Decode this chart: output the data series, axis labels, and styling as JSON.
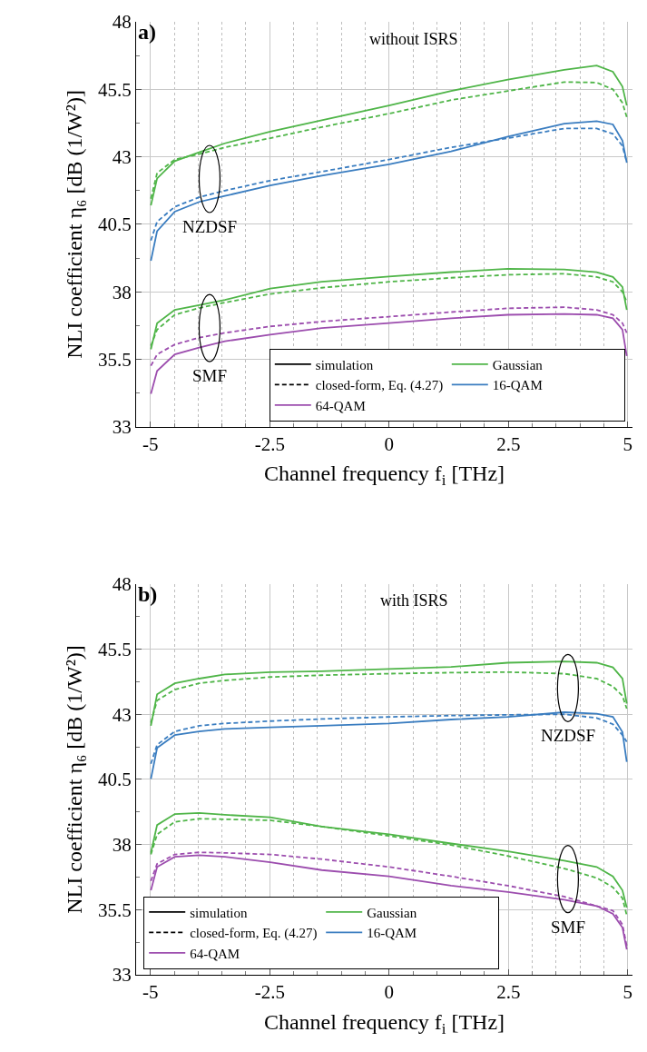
{
  "chart_data": [
    {
      "type": "line",
      "title": "without ISRS",
      "xlabel": "Channel frequency f$_{i}$ [THz]",
      "ylabel": "NLI coefficient η₆ [dB (1/W²)]",
      "xlim": [
        -5.3,
        5.1
      ],
      "ylim": [
        33,
        48
      ],
      "xticks": [
        -5,
        -2.5,
        0,
        2.5,
        5
      ],
      "yticks": [
        33,
        35.5,
        38,
        40.5,
        43,
        45.5,
        48
      ],
      "grid": true,
      "legend": "bottom right",
      "x": [
        -4.99,
        -4.86,
        -4.49,
        -3.98,
        -3.44,
        -2.49,
        -1.41,
        0,
        1.3,
        2.49,
        3.67,
        4.35,
        4.69,
        4.89,
        4.98
      ],
      "annotations": [
        "a)",
        "NZDSF",
        "SMF"
      ],
      "series": [
        {
          "name": "Gaussian",
          "color": "#4fb548",
          "line_style": "solid",
          "values": [
            41.2,
            42.2,
            42.84,
            43.17,
            43.5,
            43.93,
            44.35,
            44.9,
            45.44,
            45.86,
            46.22,
            46.38,
            46.15,
            45.6,
            44.9
          ]
        },
        {
          "color": "#4fb548",
          "line_style": "dashed",
          "values": [
            41.45,
            42.4,
            42.9,
            43.1,
            43.35,
            43.69,
            44.1,
            44.6,
            45.1,
            45.44,
            45.77,
            45.75,
            45.5,
            45.0,
            44.47
          ]
        },
        {
          "name": "16-QAM",
          "color": "#3a7dc0",
          "line_style": "solid",
          "values": [
            39.15,
            40.25,
            40.97,
            41.33,
            41.55,
            41.94,
            42.3,
            42.72,
            43.2,
            43.75,
            44.23,
            44.32,
            44.2,
            43.6,
            42.78
          ]
        },
        {
          "color": "#3a7dc0",
          "line_style": "dashed",
          "values": [
            39.9,
            40.6,
            41.15,
            41.5,
            41.75,
            42.12,
            42.45,
            42.9,
            43.35,
            43.69,
            44.05,
            44.05,
            43.85,
            43.4,
            42.8
          ]
        },
        {
          "color": "#4fb548",
          "line_style": "solid",
          "values": [
            35.87,
            36.84,
            37.33,
            37.51,
            37.7,
            38.12,
            38.37,
            38.57,
            38.73,
            38.85,
            38.83,
            38.73,
            38.55,
            38.18,
            37.33
          ]
        },
        {
          "color": "#4fb548",
          "line_style": "dashed",
          "values": [
            36.0,
            36.6,
            37.15,
            37.4,
            37.6,
            37.92,
            38.15,
            38.37,
            38.52,
            38.63,
            38.67,
            38.55,
            38.37,
            38.0,
            37.63
          ]
        },
        {
          "name": "64-QAM",
          "color": "#9c4dae",
          "line_style": "solid",
          "values": [
            34.22,
            35.07,
            35.68,
            35.93,
            36.17,
            36.41,
            36.66,
            36.84,
            37.02,
            37.15,
            37.18,
            37.15,
            37.02,
            36.6,
            35.62
          ]
        },
        {
          "color": "#9c4dae",
          "line_style": "dashed",
          "values": [
            35.26,
            35.68,
            36.05,
            36.3,
            36.48,
            36.72,
            36.9,
            37.08,
            37.25,
            37.39,
            37.43,
            37.33,
            37.15,
            36.84,
            36.48
          ]
        },
        {
          "name": "simulation",
          "color": "#000000",
          "line_style": "solid",
          "values": [
            null,
            null,
            null,
            null,
            null,
            null,
            null,
            null,
            null,
            null,
            null,
            null,
            null,
            null,
            null
          ]
        },
        {
          "name": "closed-form, Eq. (4.27)",
          "color": "#000000",
          "line_style": "dashed",
          "values": [
            null,
            null,
            null,
            null,
            null,
            null,
            null,
            null,
            null,
            null,
            null,
            null,
            null,
            null,
            null
          ]
        }
      ]
    },
    {
      "type": "line",
      "title": "with ISRS",
      "xlabel": "Channel frequency f$_{i}$ [THz]",
      "ylabel": "NLI coefficient η₆ [dB (1/W²)]",
      "xlim": [
        -5.3,
        5.1
      ],
      "ylim": [
        33,
        48
      ],
      "xticks": [
        -5,
        -2.5,
        0,
        2.5,
        5
      ],
      "yticks": [
        33,
        35.5,
        38,
        40.5,
        43,
        45.5,
        48
      ],
      "grid": true,
      "legend": "bottom left",
      "x": [
        -4.99,
        -4.86,
        -4.49,
        -3.98,
        -3.44,
        -2.49,
        -1.41,
        0,
        1.3,
        2.49,
        3.67,
        4.35,
        4.69,
        4.89,
        4.98
      ],
      "annotations": [
        "b)",
        "NZDSF",
        "SMF"
      ],
      "series": [
        {
          "name": "Gaussian",
          "color": "#4fb548",
          "line_style": "solid",
          "values": [
            42.56,
            43.77,
            44.19,
            44.37,
            44.53,
            44.62,
            44.65,
            44.74,
            44.82,
            44.98,
            45.03,
            44.98,
            44.8,
            44.37,
            43.41
          ]
        },
        {
          "color": "#4fb548",
          "line_style": "dashed",
          "values": [
            42.68,
            43.53,
            43.95,
            44.19,
            44.3,
            44.43,
            44.5,
            44.56,
            44.6,
            44.62,
            44.56,
            44.37,
            44.07,
            43.71,
            43.22
          ]
        },
        {
          "name": "16-QAM",
          "color": "#3a7dc0",
          "line_style": "solid",
          "values": [
            40.52,
            41.71,
            42.2,
            42.34,
            42.44,
            42.5,
            42.56,
            42.65,
            42.8,
            42.9,
            43.08,
            43.02,
            42.9,
            42.32,
            41.17
          ]
        },
        {
          "color": "#3a7dc0",
          "line_style": "dashed",
          "values": [
            41.1,
            41.83,
            42.34,
            42.56,
            42.65,
            42.74,
            42.82,
            42.9,
            42.95,
            42.98,
            43.0,
            42.86,
            42.62,
            42.2,
            41.95
          ]
        },
        {
          "color": "#4fb548",
          "line_style": "solid",
          "values": [
            37.68,
            38.75,
            39.17,
            39.21,
            39.14,
            39.05,
            38.69,
            38.39,
            38.04,
            37.74,
            37.38,
            37.14,
            36.78,
            36.24,
            35.58
          ]
        },
        {
          "color": "#4fb548",
          "line_style": "dashed",
          "values": [
            37.62,
            38.39,
            38.87,
            38.99,
            38.97,
            38.93,
            38.69,
            38.33,
            37.98,
            37.56,
            37.08,
            36.72,
            36.36,
            35.94,
            35.28
          ]
        },
        {
          "name": "64-QAM",
          "color": "#9c4dae",
          "line_style": "solid",
          "values": [
            36.24,
            37.14,
            37.53,
            37.59,
            37.53,
            37.32,
            37.02,
            36.78,
            36.42,
            36.18,
            35.88,
            35.64,
            35.34,
            34.81,
            33.97
          ]
        },
        {
          "color": "#9c4dae",
          "line_style": "dashed",
          "values": [
            36.6,
            37.26,
            37.62,
            37.7,
            37.68,
            37.62,
            37.44,
            37.14,
            36.78,
            36.42,
            36.0,
            35.64,
            35.46,
            34.93,
            34.1
          ]
        },
        {
          "name": "simulation",
          "color": "#000000",
          "line_style": "solid",
          "values": [
            null,
            null,
            null,
            null,
            null,
            null,
            null,
            null,
            null,
            null,
            null,
            null,
            null,
            null,
            null
          ]
        },
        {
          "name": "closed-form, Eq. (4.27)",
          "color": "#000000",
          "line_style": "dashed",
          "values": [
            null,
            null,
            null,
            null,
            null,
            null,
            null,
            null,
            null,
            null,
            null,
            null,
            null,
            null,
            null
          ]
        }
      ]
    }
  ]
}
